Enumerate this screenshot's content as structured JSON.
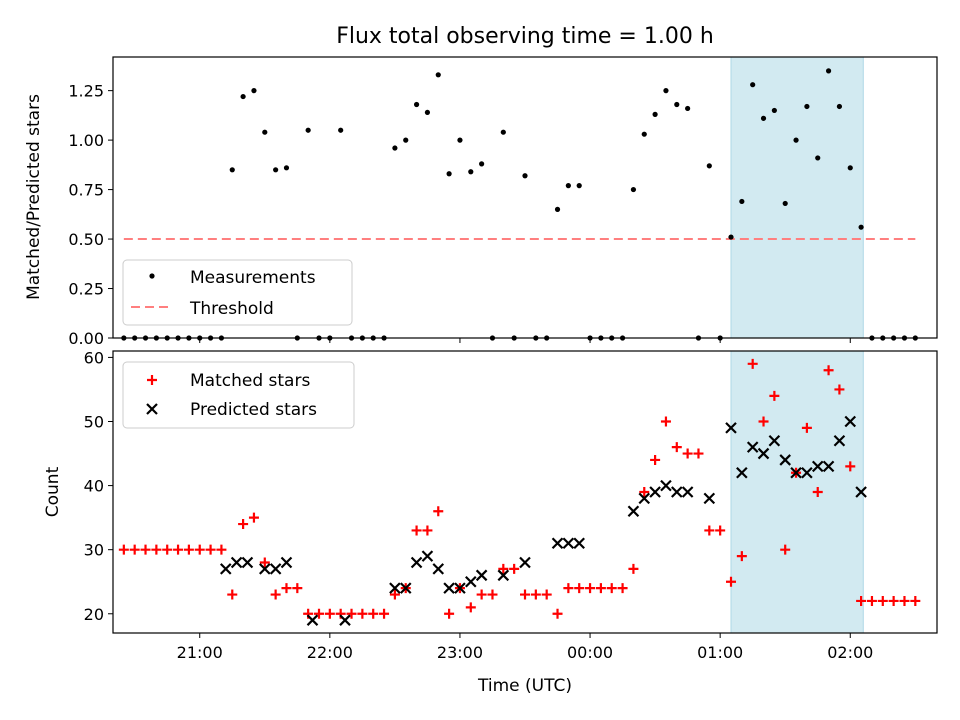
{
  "chart_data": [
    {
      "panel": "top",
      "type": "scatter",
      "title": "Flux total observing time = 1.00 h",
      "ylabel": "Matched/Predicted stars",
      "xlabel": "",
      "xlim": [
        "20:20",
        "02:40"
      ],
      "ylim": [
        0,
        1.42
      ],
      "yticks": [
        0.0,
        0.25,
        0.5,
        0.75,
        1.0,
        1.25
      ],
      "ytick_labels": [
        "0.00",
        "0.25",
        "0.50",
        "0.75",
        "1.00",
        "1.25"
      ],
      "highlight_span": [
        "01:05",
        "02:06"
      ],
      "highlight_color": "#add8e6",
      "legend": {
        "placement": "lower-left",
        "entries": [
          {
            "label": "Measurements",
            "marker": "dot",
            "color": "#000000"
          },
          {
            "label": "Threshold",
            "marker": "dashed-line",
            "color": "#ff7f7f"
          }
        ]
      },
      "threshold": {
        "value": 0.5,
        "x_range": [
          "20:25",
          "02:30"
        ],
        "color": "#ff7f7f"
      },
      "series": [
        {
          "name": "Measurements",
          "color": "#000000",
          "points": [
            [
              "20:25",
              0
            ],
            [
              "20:30",
              0
            ],
            [
              "20:35",
              0
            ],
            [
              "20:40",
              0
            ],
            [
              "20:45",
              0
            ],
            [
              "20:50",
              0
            ],
            [
              "20:55",
              0
            ],
            [
              "21:00",
              0
            ],
            [
              "21:05",
              0
            ],
            [
              "21:10",
              0
            ],
            [
              "21:15",
              0.85
            ],
            [
              "21:20",
              1.22
            ],
            [
              "21:25",
              1.25
            ],
            [
              "21:30",
              1.04
            ],
            [
              "21:35",
              0.85
            ],
            [
              "21:40",
              0.86
            ],
            [
              "21:45",
              0
            ],
            [
              "21:50",
              1.05
            ],
            [
              "21:55",
              0
            ],
            [
              "22:00",
              0
            ],
            [
              "22:05",
              1.05
            ],
            [
              "22:10",
              0
            ],
            [
              "22:15",
              0
            ],
            [
              "22:20",
              0
            ],
            [
              "22:25",
              0
            ],
            [
              "22:30",
              0.96
            ],
            [
              "22:35",
              1.0
            ],
            [
              "22:40",
              1.18
            ],
            [
              "22:45",
              1.14
            ],
            [
              "22:50",
              1.33
            ],
            [
              "22:55",
              0.83
            ],
            [
              "23:00",
              1.0
            ],
            [
              "23:05",
              0.84
            ],
            [
              "23:10",
              0.88
            ],
            [
              "23:15",
              0
            ],
            [
              "23:20",
              1.04
            ],
            [
              "23:25",
              0
            ],
            [
              "23:30",
              0.82
            ],
            [
              "23:35",
              0
            ],
            [
              "23:40",
              0
            ],
            [
              "23:45",
              0.65
            ],
            [
              "23:50",
              0.77
            ],
            [
              "23:55",
              0.77
            ],
            [
              "00:00",
              0
            ],
            [
              "00:05",
              0
            ],
            [
              "00:10",
              0
            ],
            [
              "00:15",
              0
            ],
            [
              "00:20",
              0.75
            ],
            [
              "00:25",
              1.03
            ],
            [
              "00:30",
              1.13
            ],
            [
              "00:35",
              1.25
            ],
            [
              "00:40",
              1.18
            ],
            [
              "00:45",
              1.16
            ],
            [
              "00:50",
              0
            ],
            [
              "00:55",
              0.87
            ],
            [
              "01:00",
              0
            ],
            [
              "01:05",
              0.51
            ],
            [
              "01:10",
              0.69
            ],
            [
              "01:15",
              1.28
            ],
            [
              "01:20",
              1.11
            ],
            [
              "01:25",
              1.15
            ],
            [
              "01:30",
              0.68
            ],
            [
              "01:35",
              1.0
            ],
            [
              "01:40",
              1.17
            ],
            [
              "01:45",
              0.91
            ],
            [
              "01:50",
              1.35
            ],
            [
              "01:55",
              1.17
            ],
            [
              "02:00",
              0.86
            ],
            [
              "02:05",
              0.56
            ],
            [
              "02:10",
              0
            ],
            [
              "02:15",
              0
            ],
            [
              "02:20",
              0
            ],
            [
              "02:25",
              0
            ],
            [
              "02:30",
              0
            ]
          ]
        }
      ]
    },
    {
      "panel": "bottom",
      "type": "scatter",
      "xlabel": "Time (UTC)",
      "ylabel": "Count",
      "xlim": [
        "20:20",
        "02:40"
      ],
      "ylim": [
        17,
        61
      ],
      "xticks": [
        "21:00",
        "22:00",
        "23:00",
        "00:00",
        "01:00",
        "02:00"
      ],
      "yticks": [
        20,
        30,
        40,
        50,
        60
      ],
      "highlight_span": [
        "01:05",
        "02:06"
      ],
      "highlight_color": "#add8e6",
      "legend": {
        "placement": "upper-left",
        "entries": [
          {
            "label": "Matched stars",
            "marker": "plus",
            "color": "#ff0000"
          },
          {
            "label": "Predicted stars",
            "marker": "x",
            "color": "#000000"
          }
        ]
      },
      "series": [
        {
          "name": "Matched stars",
          "marker": "plus",
          "color": "#ff0000",
          "points": [
            [
              "20:25",
              30
            ],
            [
              "20:30",
              30
            ],
            [
              "20:35",
              30
            ],
            [
              "20:40",
              30
            ],
            [
              "20:45",
              30
            ],
            [
              "20:50",
              30
            ],
            [
              "20:55",
              30
            ],
            [
              "21:00",
              30
            ],
            [
              "21:05",
              30
            ],
            [
              "21:10",
              30
            ],
            [
              "21:15",
              23
            ],
            [
              "21:20",
              34
            ],
            [
              "21:25",
              35
            ],
            [
              "21:30",
              28
            ],
            [
              "21:35",
              23
            ],
            [
              "21:40",
              24
            ],
            [
              "21:45",
              24
            ],
            [
              "21:50",
              20
            ],
            [
              "21:55",
              20
            ],
            [
              "22:00",
              20
            ],
            [
              "22:05",
              20
            ],
            [
              "22:10",
              20
            ],
            [
              "22:15",
              20
            ],
            [
              "22:20",
              20
            ],
            [
              "22:25",
              20
            ],
            [
              "22:30",
              23
            ],
            [
              "22:35",
              24
            ],
            [
              "22:40",
              33
            ],
            [
              "22:45",
              33
            ],
            [
              "22:50",
              36
            ],
            [
              "22:55",
              20
            ],
            [
              "23:00",
              24
            ],
            [
              "23:05",
              21
            ],
            [
              "23:10",
              23
            ],
            [
              "23:15",
              23
            ],
            [
              "23:20",
              27
            ],
            [
              "23:25",
              27
            ],
            [
              "23:30",
              23
            ],
            [
              "23:35",
              23
            ],
            [
              "23:40",
              23
            ],
            [
              "23:45",
              20
            ],
            [
              "23:50",
              24
            ],
            [
              "23:55",
              24
            ],
            [
              "00:00",
              24
            ],
            [
              "00:05",
              24
            ],
            [
              "00:10",
              24
            ],
            [
              "00:15",
              24
            ],
            [
              "00:20",
              27
            ],
            [
              "00:25",
              39
            ],
            [
              "00:30",
              44
            ],
            [
              "00:35",
              50
            ],
            [
              "00:40",
              46
            ],
            [
              "00:45",
              45
            ],
            [
              "00:50",
              45
            ],
            [
              "00:55",
              33
            ],
            [
              "01:00",
              33
            ],
            [
              "01:05",
              25
            ],
            [
              "01:10",
              29
            ],
            [
              "01:15",
              59
            ],
            [
              "01:20",
              50
            ],
            [
              "01:25",
              54
            ],
            [
              "01:30",
              30
            ],
            [
              "01:35",
              42
            ],
            [
              "01:40",
              49
            ],
            [
              "01:45",
              39
            ],
            [
              "01:50",
              58
            ],
            [
              "01:55",
              55
            ],
            [
              "02:00",
              43
            ],
            [
              "02:05",
              22
            ],
            [
              "02:10",
              22
            ],
            [
              "02:15",
              22
            ],
            [
              "02:20",
              22
            ],
            [
              "02:25",
              22
            ],
            [
              "02:30",
              22
            ]
          ]
        },
        {
          "name": "Predicted stars",
          "marker": "x",
          "color": "#000000",
          "points": [
            [
              "21:12",
              27
            ],
            [
              "21:17",
              28
            ],
            [
              "21:22",
              28
            ],
            [
              "21:30",
              27
            ],
            [
              "21:35",
              27
            ],
            [
              "21:40",
              28
            ],
            [
              "21:52",
              19
            ],
            [
              "22:07",
              19
            ],
            [
              "22:30",
              24
            ],
            [
              "22:35",
              24
            ],
            [
              "22:40",
              28
            ],
            [
              "22:45",
              29
            ],
            [
              "22:50",
              27
            ],
            [
              "22:55",
              24
            ],
            [
              "23:00",
              24
            ],
            [
              "23:05",
              25
            ],
            [
              "23:10",
              26
            ],
            [
              "23:20",
              26
            ],
            [
              "23:30",
              28
            ],
            [
              "23:45",
              31
            ],
            [
              "23:50",
              31
            ],
            [
              "23:55",
              31
            ],
            [
              "00:20",
              36
            ],
            [
              "00:25",
              38
            ],
            [
              "00:30",
              39
            ],
            [
              "00:35",
              40
            ],
            [
              "00:40",
              39
            ],
            [
              "00:45",
              39
            ],
            [
              "00:55",
              38
            ],
            [
              "01:05",
              49
            ],
            [
              "01:10",
              42
            ],
            [
              "01:15",
              46
            ],
            [
              "01:20",
              45
            ],
            [
              "01:25",
              47
            ],
            [
              "01:30",
              44
            ],
            [
              "01:35",
              42
            ],
            [
              "01:40",
              42
            ],
            [
              "01:45",
              43
            ],
            [
              "01:50",
              43
            ],
            [
              "01:55",
              47
            ],
            [
              "02:00",
              50
            ],
            [
              "02:05",
              39
            ]
          ]
        }
      ]
    }
  ]
}
